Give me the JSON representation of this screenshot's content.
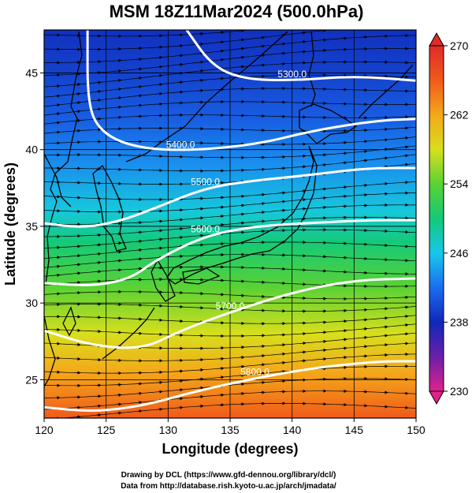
{
  "chart_data": {
    "type": "heatmap",
    "title": "MSM 18Z11Mar2024 (500.0hPa)",
    "xlabel": "Longitude (degrees)",
    "ylabel": "Latitude  (degrees)",
    "xlim": [
      120,
      150
    ],
    "ylim": [
      22.5,
      47.8
    ],
    "x_ticks": [
      "120",
      "125",
      "130",
      "135",
      "140",
      "145",
      "150"
    ],
    "y_ticks": [
      "25",
      "30",
      "35",
      "40",
      "45"
    ],
    "grid": true,
    "colorbar": {
      "range": [
        230,
        270
      ],
      "ticks": [
        "270",
        "262",
        "254",
        "246",
        "238",
        "230"
      ],
      "colors": [
        "#e0228c",
        "#6a1fa8",
        "#1028b8",
        "#1a6ef0",
        "#17c8ea",
        "#14c978",
        "#5ad234",
        "#d8df1c",
        "#f4a81a",
        "#f05a1a",
        "#e02b2b"
      ],
      "placement": "right"
    },
    "temperature_field": [
      {
        "lat": 47.8,
        "K": 238.5
      },
      {
        "lat": 45,
        "K": 239.5
      },
      {
        "lat": 42,
        "K": 241
      },
      {
        "lat": 39,
        "K": 243.5
      },
      {
        "lat": 36,
        "K": 246.5
      },
      {
        "lat": 34,
        "K": 250
      },
      {
        "lat": 31,
        "K": 254
      },
      {
        "lat": 28,
        "K": 258
      },
      {
        "lat": 25.5,
        "K": 262
      },
      {
        "lat": 22.5,
        "K": 266
      }
    ],
    "contours": [
      {
        "label": "5300.0",
        "points": [
          [
            131.5,
            47.8
          ],
          [
            133.5,
            45.5
          ],
          [
            136,
            44.6
          ],
          [
            140,
            44.5
          ],
          [
            145,
            44.8
          ],
          [
            150,
            44.5
          ]
        ]
      },
      {
        "label": "5400.0",
        "points": [
          [
            123.5,
            47.8
          ],
          [
            123.5,
            43
          ],
          [
            124.5,
            41.2
          ],
          [
            127,
            40.2
          ],
          [
            131,
            39.9
          ],
          [
            137,
            40.3
          ],
          [
            142,
            41.3
          ],
          [
            147,
            41.9
          ],
          [
            150,
            42
          ]
        ]
      },
      {
        "label": "5500.0",
        "points": [
          [
            120,
            35.2
          ],
          [
            123,
            34.9
          ],
          [
            126,
            35.3
          ],
          [
            129,
            36.2
          ],
          [
            133,
            37.5
          ],
          [
            137,
            38
          ],
          [
            141,
            38.3
          ],
          [
            146,
            38.8
          ],
          [
            150,
            38.8
          ]
        ]
      },
      {
        "label": "5600.0",
        "points": [
          [
            120,
            31.3
          ],
          [
            124,
            31.1
          ],
          [
            127,
            31.6
          ],
          [
            129,
            32.8
          ],
          [
            133,
            34.4
          ],
          [
            137,
            35
          ],
          [
            141,
            35.2
          ],
          [
            146,
            35.4
          ],
          [
            150,
            35.4
          ]
        ]
      },
      {
        "label": "5700.0",
        "points": [
          [
            120,
            28.2
          ],
          [
            124,
            27.2
          ],
          [
            128,
            27
          ],
          [
            131,
            28.2
          ],
          [
            135,
            29.4
          ],
          [
            140,
            30.7
          ],
          [
            145,
            31.5
          ],
          [
            150,
            31.6
          ]
        ]
      },
      {
        "label": "5800.0",
        "points": [
          [
            120,
            23.2
          ],
          [
            124,
            22.9
          ],
          [
            128,
            23.3
          ],
          [
            132,
            24.2
          ],
          [
            137,
            25.1
          ],
          [
            142,
            25.8
          ],
          [
            147,
            26.2
          ],
          [
            150,
            26.2
          ]
        ]
      }
    ]
  },
  "footer": {
    "line1": "Drawing by DCL (https://www.gfd-dennou.org/library/dcl/)",
    "line2": "Data from http://database.rish.kyoto-u.ac.jp/arch/jmadata/"
  }
}
